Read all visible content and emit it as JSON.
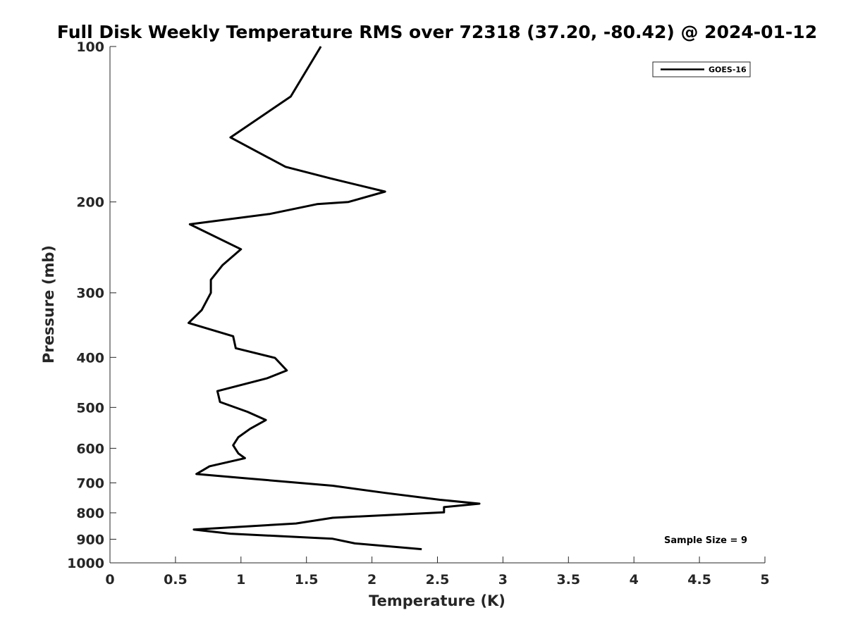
{
  "chart_data": {
    "type": "line",
    "title": "Full Disk Weekly Temperature RMS over 72318 (37.20, -80.42) @ 2024-01-12",
    "xlabel": "Temperature (K)",
    "ylabel": "Pressure (mb)",
    "xlim": [
      0,
      5
    ],
    "ylim": [
      100,
      1000
    ],
    "y_scale": "log",
    "y_reversed": true,
    "x_ticks": [
      "0",
      "0.5",
      "1",
      "1.5",
      "2",
      "2.5",
      "3",
      "3.5",
      "4",
      "4.5",
      "5"
    ],
    "y_ticks": [
      "100",
      "200",
      "300",
      "400",
      "500",
      "600",
      "700",
      "800",
      "900",
      "1000"
    ],
    "grid": false,
    "legend": {
      "position": "top-right",
      "entries": [
        "GOES-16"
      ]
    },
    "annotation": "Sample Size = 9",
    "series": [
      {
        "name": "GOES-16",
        "color": "#000000",
        "points": [
          [
            1.61,
            100
          ],
          [
            1.38,
            125
          ],
          [
            0.92,
            150
          ],
          [
            1.34,
            171
          ],
          [
            1.68,
            180
          ],
          [
            2.1,
            191
          ],
          [
            1.82,
            200
          ],
          [
            1.58,
            202
          ],
          [
            1.22,
            211
          ],
          [
            0.61,
            221
          ],
          [
            1.0,
            247
          ],
          [
            0.86,
            265
          ],
          [
            0.77,
            283
          ],
          [
            0.77,
            300
          ],
          [
            0.7,
            324
          ],
          [
            0.6,
            343
          ],
          [
            0.94,
            364
          ],
          [
            0.96,
            384
          ],
          [
            1.26,
            401
          ],
          [
            1.35,
            424
          ],
          [
            1.2,
            439
          ],
          [
            0.82,
            465
          ],
          [
            0.84,
            488
          ],
          [
            1.05,
            510
          ],
          [
            1.19,
            529
          ],
          [
            1.07,
            550
          ],
          [
            0.98,
            571
          ],
          [
            0.94,
            592
          ],
          [
            0.98,
            614
          ],
          [
            1.03,
            627
          ],
          [
            0.76,
            650
          ],
          [
            0.66,
            673
          ],
          [
            1.04,
            686
          ],
          [
            1.7,
            709
          ],
          [
            2.1,
            732
          ],
          [
            2.52,
            755
          ],
          [
            2.82,
            768
          ],
          [
            2.55,
            780
          ],
          [
            2.55,
            798
          ],
          [
            1.7,
            818
          ],
          [
            1.42,
            839
          ],
          [
            0.64,
            862
          ],
          [
            0.92,
            878
          ],
          [
            1.7,
            898
          ],
          [
            1.87,
            917
          ],
          [
            2.38,
            941
          ]
        ]
      }
    ]
  }
}
